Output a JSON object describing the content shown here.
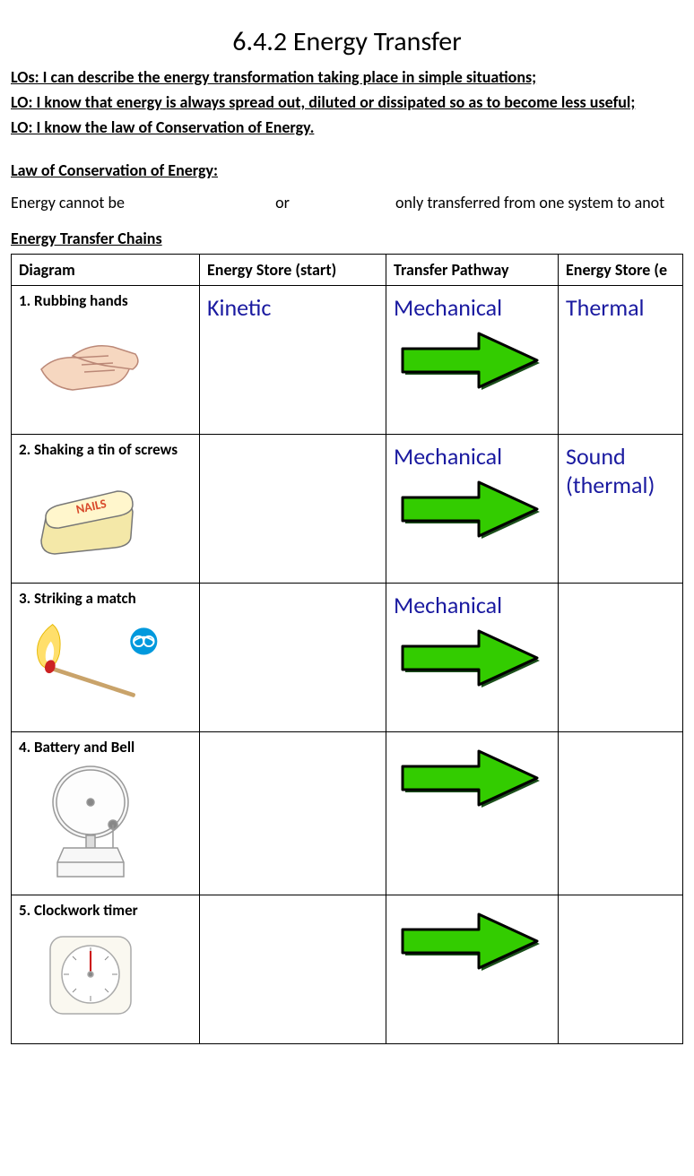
{
  "title": "6.4.2 Energy Transfer",
  "los": [
    "LOs: I can describe the energy transformation taking place in simple situations;",
    "LO: I know that energy is always spread out, diluted or dissipated so as to become less useful;",
    "LO: I know the law of Conservation of Energy."
  ],
  "law_header": "Law of Conservation of Energy:",
  "fill_text": {
    "part1": "Energy cannot be",
    "part2": "or",
    "part3": "only transferred from one system to anot"
  },
  "chains_header": "Energy Transfer Chains",
  "columns": {
    "diagram": "Diagram",
    "start": "Energy Store (start)",
    "pathway": "Transfer Pathway",
    "end": "Energy Store (e"
  },
  "rows": [
    {
      "label": "1. Rubbing hands",
      "start": "Kinetic",
      "pathway": "Mechanical",
      "end": "Thermal"
    },
    {
      "label": "2. Shaking a tin of screws",
      "start": "",
      "pathway": "Mechanical",
      "end": "Sound (thermal)"
    },
    {
      "label": "3. Striking a match",
      "start": "",
      "pathway": "Mechanical",
      "end": ""
    },
    {
      "label": "4. Battery and Bell",
      "start": "",
      "pathway": "",
      "end": ""
    },
    {
      "label": "5. Clockwork timer",
      "start": "",
      "pathway": "",
      "end": ""
    }
  ],
  "colors": {
    "answer_text": "#1a1aa0",
    "arrow_fill": "#33cc00",
    "arrow_stroke": "#000000",
    "arrow_shadow": "#1a4f1a",
    "safety_icon_bg": "#0099dd",
    "tin_fill": "#f4e8a8",
    "tin_label": "#d84a2b",
    "hand_fill": "#f6d7c0",
    "hand_line": "#b88",
    "match_head": "#c22",
    "match_stick": "#c9a36a",
    "flame_outer": "#ffdf6b",
    "flame_inner": "#ffffff",
    "bell_fill": "#f7f7f7",
    "bell_line": "#999",
    "timer_fill": "#faf8f0",
    "timer_line": "#aaa"
  },
  "arrow": {
    "width": 170,
    "height": 70
  }
}
